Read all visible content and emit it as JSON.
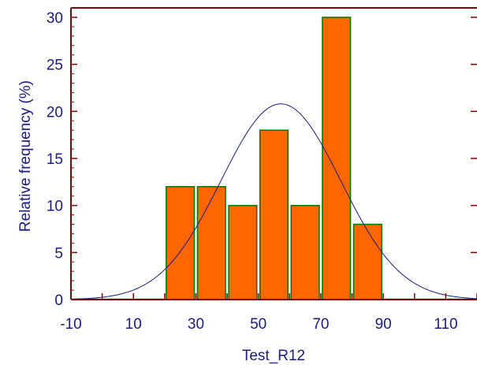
{
  "chart_data": {
    "type": "bar",
    "title": "",
    "xlabel": "Test_R12",
    "ylabel": "Relative frequency (%)",
    "xlim": [
      -10,
      120
    ],
    "ylim": [
      0,
      31
    ],
    "xticks": [
      "-10",
      "10",
      "30",
      "50",
      "70",
      "90",
      "110"
    ],
    "yticks": [
      "0",
      "5",
      "10",
      "15",
      "20",
      "25",
      "30"
    ],
    "bin_width": 10,
    "bins": [
      {
        "start": -10,
        "end": 0,
        "value": 0
      },
      {
        "start": 0,
        "end": 10,
        "value": 0
      },
      {
        "start": 10,
        "end": 20,
        "value": 0
      },
      {
        "start": 20,
        "end": 30,
        "value": 12
      },
      {
        "start": 30,
        "end": 40,
        "value": 12
      },
      {
        "start": 40,
        "end": 50,
        "value": 10
      },
      {
        "start": 50,
        "end": 60,
        "value": 18
      },
      {
        "start": 60,
        "end": 70,
        "value": 10
      },
      {
        "start": 70,
        "end": 80,
        "value": 30
      },
      {
        "start": 80,
        "end": 90,
        "value": 8
      },
      {
        "start": 90,
        "end": 100,
        "value": 0
      },
      {
        "start": 100,
        "end": 110,
        "value": 0
      },
      {
        "start": 110,
        "end": 120,
        "value": 0
      }
    ],
    "normal_curve": {
      "mean": 57.2,
      "sd": 19.2,
      "peak": 20.8
    },
    "colors": {
      "bar_fill": "#ff6600",
      "bar_edge": "#007700",
      "curve": "#1a1a80",
      "frame": "#800000",
      "text": "#1a1a80"
    }
  }
}
